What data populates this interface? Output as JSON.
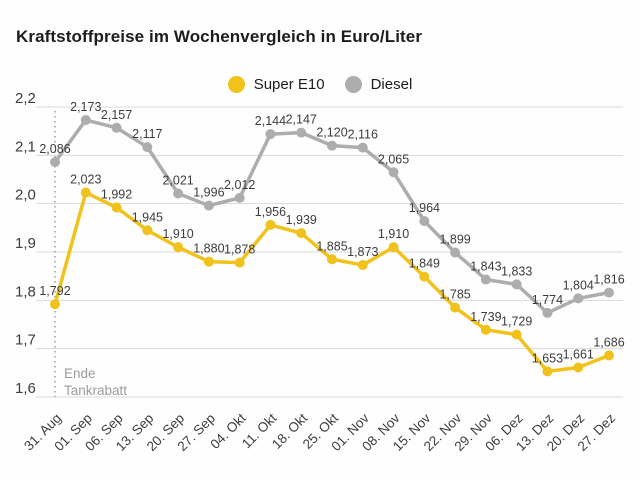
{
  "title": "Kraftstoffpreise im Wochenvergleich in Euro/Liter",
  "colors": {
    "title": "#1D1D1B",
    "text": "#3D3D3D",
    "grid": "#D9D9D9",
    "muted": "#9C9C9C",
    "super_e10": "#F1C21B",
    "diesel": "#ADADAD"
  },
  "annotation": {
    "line1": "Ende",
    "line2": "Tankrabatt"
  },
  "chart_data": {
    "type": "line",
    "title": "Kraftstoffpreise im Wochenvergleich in Euro/Liter",
    "xlabel": "",
    "ylabel": "Euro/Liter",
    "ylim": [
      1.6,
      2.2
    ],
    "yticks": [
      2.2,
      2.1,
      2.0,
      1.9,
      1.8,
      1.7,
      1.6
    ],
    "grid": true,
    "legend_position": "top-center",
    "decimal_separator": ",",
    "categories": [
      "31. Aug",
      "01. Sep",
      "06. Sep",
      "13. Sep",
      "20. Sep",
      "27. Sep",
      "04. Okt",
      "11. Okt",
      "18. Okt",
      "25. Okt",
      "01. Nov",
      "08. Nov",
      "15. Nov",
      "22. Nov",
      "29. Nov",
      "06. Dez",
      "13. Dez",
      "20. Dez",
      "27. Dez"
    ],
    "series": [
      {
        "name": "Super E10",
        "color": "#F1C21B",
        "values": [
          1.792,
          2.023,
          1.992,
          1.945,
          1.91,
          1.88,
          1.878,
          1.956,
          1.939,
          1.885,
          1.873,
          1.91,
          1.849,
          1.785,
          1.739,
          1.729,
          1.653,
          1.661,
          1.686
        ]
      },
      {
        "name": "Diesel",
        "color": "#ADADAD",
        "values": [
          2.086,
          2.173,
          2.157,
          2.117,
          2.021,
          1.996,
          2.012,
          2.144,
          2.147,
          2.12,
          2.116,
          2.065,
          1.964,
          1.899,
          1.843,
          1.833,
          1.774,
          1.804,
          1.816
        ]
      }
    ],
    "annotation": {
      "text": [
        "Ende",
        "Tankrabatt"
      ],
      "at_category": "31. Aug",
      "style": "dotted-vertical-line"
    }
  }
}
